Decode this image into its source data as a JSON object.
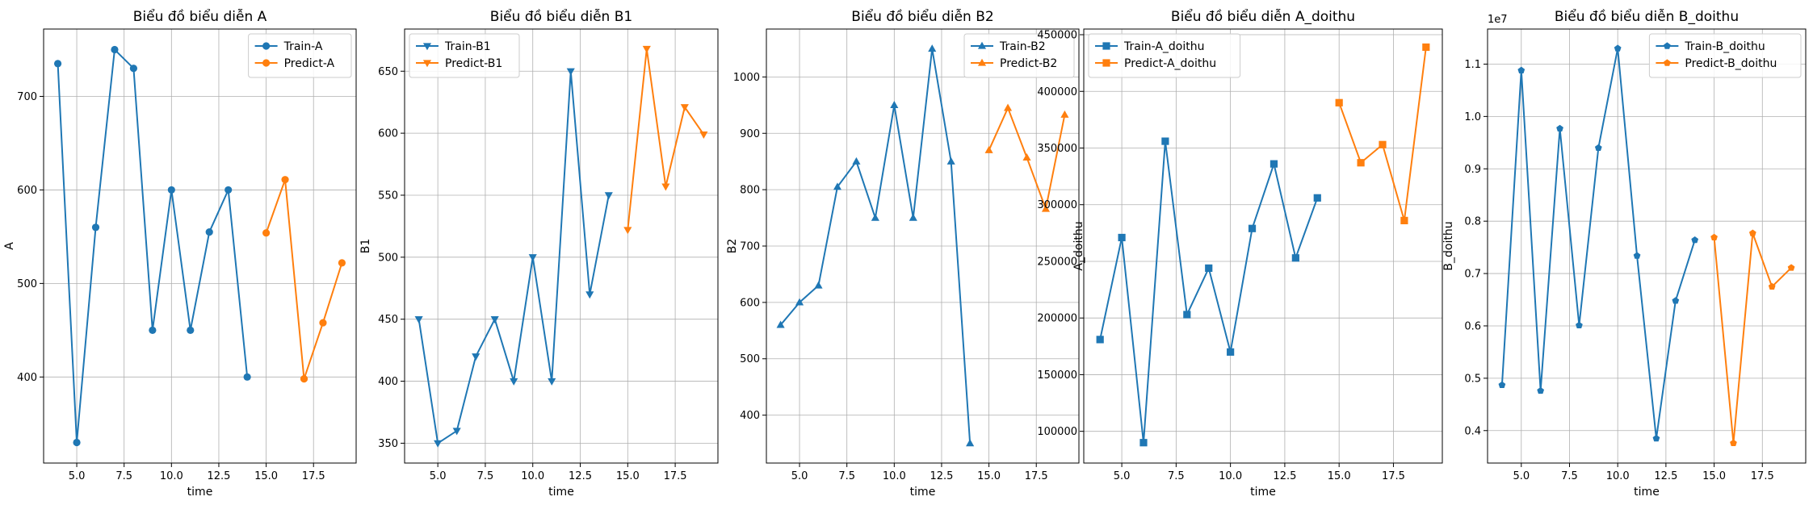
{
  "chart_data": [
    {
      "type": "line",
      "title": "Biểu đồ biểu diễn A",
      "xlabel": "time",
      "ylabel": "A",
      "xlim": [
        3.25,
        19.75
      ],
      "ylim": [
        308,
        772
      ],
      "xticks": [
        5.0,
        7.5,
        10.0,
        12.5,
        15.0,
        17.5
      ],
      "xtick_labels": [
        "5.0",
        "7.5",
        "10.0",
        "12.5",
        "15.0",
        "17.5"
      ],
      "yticks": [
        400,
        500,
        600,
        700
      ],
      "ytick_labels": [
        "400",
        "500",
        "600",
        "700"
      ],
      "grid": true,
      "legend_position": "top-right",
      "series": [
        {
          "name": "Train-A",
          "marker": "circle",
          "color": "#1f77b4",
          "x": [
            4,
            5,
            6,
            7,
            8,
            9,
            10,
            11,
            12,
            13,
            14
          ],
          "y": [
            735,
            330,
            560,
            750,
            730,
            450,
            600,
            450,
            555,
            600,
            400
          ]
        },
        {
          "name": "Predict-A",
          "marker": "circle",
          "color": "#ff7f0e",
          "x": [
            15,
            16,
            17,
            18,
            19
          ],
          "y": [
            554,
            611,
            398,
            458,
            522
          ]
        }
      ]
    },
    {
      "type": "line",
      "title": "Biểu đồ biểu diễn B1",
      "xlabel": "time",
      "ylabel": "B1",
      "xlim": [
        3.25,
        19.75
      ],
      "ylim": [
        334,
        684
      ],
      "xticks": [
        5.0,
        7.5,
        10.0,
        12.5,
        15.0,
        17.5
      ],
      "xtick_labels": [
        "5.0",
        "7.5",
        "10.0",
        "12.5",
        "15.0",
        "17.5"
      ],
      "yticks": [
        350,
        400,
        450,
        500,
        550,
        600,
        650
      ],
      "ytick_labels": [
        "350",
        "400",
        "450",
        "500",
        "550",
        "600",
        "650"
      ],
      "grid": true,
      "legend_position": "top-left",
      "series": [
        {
          "name": "Train-B1",
          "marker": "triangle-down",
          "color": "#1f77b4",
          "x": [
            4,
            5,
            6,
            7,
            8,
            9,
            10,
            11,
            12,
            13,
            14
          ],
          "y": [
            450,
            350,
            360,
            420,
            450,
            400,
            500,
            400,
            650,
            470,
            550
          ]
        },
        {
          "name": "Predict-B1",
          "marker": "triangle-down",
          "color": "#ff7f0e",
          "x": [
            15,
            16,
            17,
            18,
            19
          ],
          "y": [
            522,
            668,
            557,
            621,
            599
          ]
        }
      ]
    },
    {
      "type": "line",
      "title": "Biểu đồ biểu diễn B2",
      "xlabel": "time",
      "ylabel": "B2",
      "xlim": [
        3.25,
        19.75
      ],
      "ylim": [
        315,
        1085
      ],
      "xticks": [
        5.0,
        7.5,
        10.0,
        12.5,
        15.0,
        17.5
      ],
      "xtick_labels": [
        "5.0",
        "7.5",
        "10.0",
        "12.5",
        "15.0",
        "17.5"
      ],
      "yticks": [
        400,
        500,
        600,
        700,
        800,
        900,
        1000
      ],
      "ytick_labels": [
        "400",
        "500",
        "600",
        "700",
        "800",
        "900",
        "1000"
      ],
      "grid": true,
      "legend_position": "top-right",
      "series": [
        {
          "name": "Train-B2",
          "marker": "triangle-up",
          "color": "#1f77b4",
          "x": [
            4,
            5,
            6,
            7,
            8,
            9,
            10,
            11,
            12,
            13,
            14
          ],
          "y": [
            560,
            600,
            630,
            805,
            850,
            750,
            950,
            750,
            1050,
            850,
            350
          ]
        },
        {
          "name": "Predict-B2",
          "marker": "triangle-up",
          "color": "#ff7f0e",
          "x": [
            15,
            16,
            17,
            18,
            19
          ],
          "y": [
            870,
            945,
            857,
            766,
            933
          ]
        }
      ]
    },
    {
      "type": "line",
      "title": "Biểu đồ biểu diễn A_doithu",
      "xlabel": "time",
      "ylabel": "A_doithu",
      "xlim": [
        3.25,
        19.75
      ],
      "ylim": [
        72000,
        455000
      ],
      "xticks": [
        5.0,
        7.5,
        10.0,
        12.5,
        15.0,
        17.5
      ],
      "xtick_labels": [
        "5.0",
        "7.5",
        "10.0",
        "12.5",
        "15.0",
        "17.5"
      ],
      "yticks": [
        100000,
        150000,
        200000,
        250000,
        300000,
        350000,
        400000,
        450000
      ],
      "ytick_labels": [
        "100000",
        "150000",
        "200000",
        "250000",
        "300000",
        "350000",
        "400000",
        "450000"
      ],
      "grid": true,
      "legend_position": "top-left",
      "series": [
        {
          "name": "Train-A_doithu",
          "marker": "square",
          "color": "#1f77b4",
          "x": [
            4,
            5,
            6,
            7,
            8,
            9,
            10,
            11,
            12,
            13,
            14
          ],
          "y": [
            181000,
            271000,
            90000,
            356000,
            203000,
            244000,
            170000,
            279000,
            336000,
            253000,
            306000
          ]
        },
        {
          "name": "Predict-A_doithu",
          "marker": "square",
          "color": "#ff7f0e",
          "x": [
            15,
            16,
            17,
            18,
            19
          ],
          "y": [
            390000,
            337000,
            353000,
            286000,
            439000
          ]
        }
      ]
    },
    {
      "type": "line",
      "title": "Biểu đồ biểu diễn B_doithu",
      "xlabel": "time",
      "ylabel": "B_doithu",
      "y_offset_label": "1e7",
      "xlim": [
        3.25,
        19.75
      ],
      "ylim": [
        0.338,
        1.167
      ],
      "xticks": [
        5.0,
        7.5,
        10.0,
        12.5,
        15.0,
        17.5
      ],
      "xtick_labels": [
        "5.0",
        "7.5",
        "10.0",
        "12.5",
        "15.0",
        "17.5"
      ],
      "yticks": [
        0.4,
        0.5,
        0.6,
        0.7,
        0.8,
        0.9,
        1.0,
        1.1
      ],
      "ytick_labels": [
        "0.4",
        "0.5",
        "0.6",
        "0.7",
        "0.8",
        "0.9",
        "1.0",
        "1.1"
      ],
      "grid": true,
      "legend_position": "top-right",
      "series": [
        {
          "name": "Train-B_doithu",
          "marker": "pentagon",
          "color": "#1f77b4",
          "x": [
            4,
            5,
            6,
            7,
            8,
            9,
            10,
            11,
            12,
            13,
            14
          ],
          "y": [
            0.487,
            1.088,
            0.476,
            0.977,
            0.601,
            0.94,
            1.13,
            0.734,
            0.385,
            0.648,
            0.764
          ]
        },
        {
          "name": "Predict-B_doithu",
          "marker": "pentagon",
          "color": "#ff7f0e",
          "x": [
            15,
            16,
            17,
            18,
            19
          ],
          "y": [
            0.769,
            0.376,
            0.777,
            0.675,
            0.711
          ]
        }
      ]
    }
  ]
}
